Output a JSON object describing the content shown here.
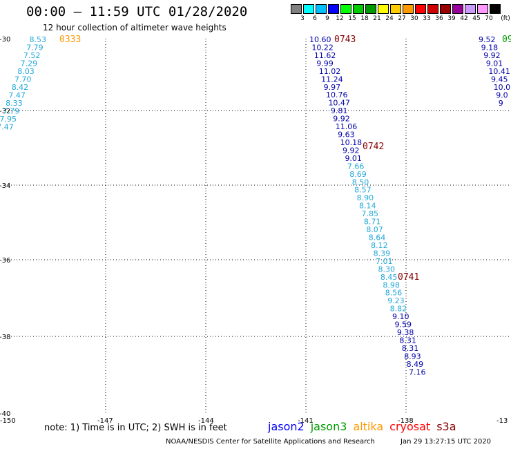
{
  "header": {
    "title": "00:00 – 11:59 UTC 01/28/2020",
    "subtitle": "12 hour collection of altimeter wave heights",
    "unit_label": "(ft)",
    "scale": [
      {
        "label": "3",
        "color": "#808080"
      },
      {
        "label": "6",
        "color": "#00ffff"
      },
      {
        "label": "9",
        "color": "#00bfff"
      },
      {
        "label": "12",
        "color": "#0000ff"
      },
      {
        "label": "15",
        "color": "#00ff00"
      },
      {
        "label": "18",
        "color": "#00cc00"
      },
      {
        "label": "21",
        "color": "#009900"
      },
      {
        "label": "24",
        "color": "#ffff00"
      },
      {
        "label": "27",
        "color": "#ffcc00"
      },
      {
        "label": "30",
        "color": "#ff9900"
      },
      {
        "label": "33",
        "color": "#ff0000"
      },
      {
        "label": "36",
        "color": "#cc0000"
      },
      {
        "label": "39",
        "color": "#990000"
      },
      {
        "label": "42",
        "color": "#990099"
      },
      {
        "label": "45",
        "color": "#cc99ff"
      },
      {
        "label": "70",
        "color": "#ff99ff"
      },
      {
        "label": "",
        "color": "#000000"
      }
    ]
  },
  "map": {
    "lat_labels": [
      "-30",
      "-32",
      "-34",
      "-36",
      "-38",
      "-40"
    ],
    "lon_labels": [
      "-150",
      "-147",
      "-144",
      "-141",
      "-138",
      "-13"
    ],
    "tracks": [
      {
        "id": "track-west",
        "color": "#1fa8d8",
        "time": "0333",
        "time_color": "#ff9900",
        "values": [
          "8.53",
          "7.79",
          "7.52",
          "7.29",
          "8.03",
          "7.70",
          "8.42",
          "7.47",
          "8.33",
          "7.79",
          "7.95",
          "7.47"
        ]
      },
      {
        "id": "track-main",
        "color": "#0000aa",
        "time_color": "#880000",
        "times": [
          "0743",
          "0742",
          "0741"
        ],
        "values": [
          "10.60",
          "10.22",
          "11.62",
          "9.99",
          "11.02",
          "11.24",
          "9.97",
          "10.76",
          "10.47",
          "9.81",
          "9.92",
          "11.06",
          "9.63",
          "10.18",
          "9.92",
          "9.01",
          "7.66",
          "8.69",
          "8.50",
          "8.57",
          "8.90",
          "8.14",
          "7.85",
          "8.71",
          "8.07",
          "8.64",
          "8.12",
          "8.39",
          "7.01",
          "8.30",
          "8.45",
          "8.98",
          "8.56",
          "9.23",
          "8.82",
          "9.10",
          "9.59",
          "9.38",
          "8.31",
          "8.31",
          "8.93",
          "8.49",
          "7.16"
        ]
      },
      {
        "id": "track-east",
        "color": "#0000aa",
        "time": "09",
        "time_color": "#009900",
        "values": [
          "9.52",
          "9.18",
          "9.92",
          "9.01",
          "10.41",
          "9.45",
          "10.0",
          "9.0",
          "9"
        ]
      }
    ]
  },
  "footer": {
    "note": "note:  1) Time is in UTC;  2) SWH is in feet",
    "satellites": [
      {
        "name": "jason2",
        "color": "#0000ff"
      },
      {
        "name": "jason3",
        "color": "#009900"
      },
      {
        "name": "altika",
        "color": "#ff9900"
      },
      {
        "name": "cryosat",
        "color": "#ff0000"
      },
      {
        "name": "s3a",
        "color": "#880000"
      }
    ],
    "credit": "NOAA/NESDIS Center for Satellite Applications and Research",
    "timestamp": "Jan 29 13:27:15 UTC 2020"
  }
}
